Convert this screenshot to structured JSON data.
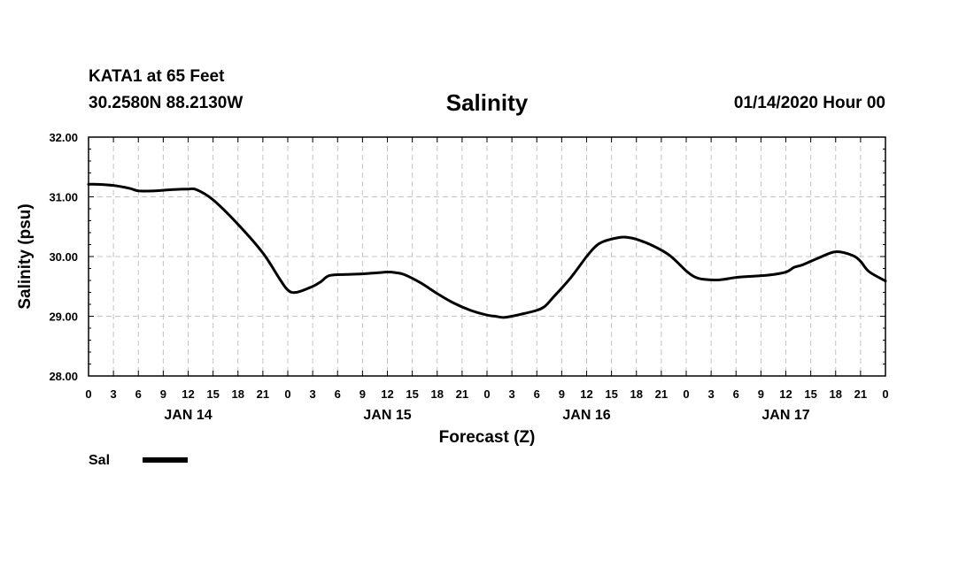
{
  "header": {
    "station": "KATA1 at 65 Feet",
    "coords": "30.2580N 88.2130W",
    "title": "Salinity",
    "run": "01/14/2020 Hour 00"
  },
  "chart_data": {
    "type": "line",
    "title": "Salinity",
    "xlabel": "Forecast (Z)",
    "ylabel": "Salinity (psu)",
    "xlim": [
      0,
      96
    ],
    "ylim": [
      28.0,
      32.0
    ],
    "grid": true,
    "y_ticks": [
      "28.00",
      "29.00",
      "30.00",
      "31.00",
      "32.00"
    ],
    "x_tick_labels": [
      "0",
      "3",
      "6",
      "9",
      "12",
      "15",
      "18",
      "21",
      "0",
      "3",
      "6",
      "9",
      "12",
      "15",
      "18",
      "21",
      "0",
      "3",
      "6",
      "9",
      "12",
      "15",
      "18",
      "21",
      "0",
      "3",
      "6",
      "9",
      "12",
      "15",
      "18",
      "21",
      "0"
    ],
    "day_labels": [
      {
        "label": "JAN 14",
        "hour": 12
      },
      {
        "label": "JAN 15",
        "hour": 36
      },
      {
        "label": "JAN 16",
        "hour": 60
      },
      {
        "label": "JAN 17",
        "hour": 84
      }
    ],
    "legend": [
      {
        "name": "Sal",
        "color": "#000000"
      }
    ],
    "series": [
      {
        "name": "Sal",
        "x": [
          0,
          1,
          3,
          5,
          6,
          8,
          10,
          12,
          13,
          15,
          18,
          21,
          23,
          24,
          25,
          27,
          28,
          29,
          31,
          33,
          34,
          35,
          36,
          37,
          38,
          40,
          42,
          44,
          46,
          48,
          49,
          50,
          51,
          52,
          54,
          55,
          56,
          58,
          60,
          61,
          62,
          64,
          65,
          66,
          68,
          70,
          72,
          73,
          74,
          76,
          78,
          80,
          82,
          84,
          85,
          86,
          88,
          90,
          92,
          93,
          94,
          96
        ],
        "y": [
          31.21,
          31.21,
          31.19,
          31.14,
          31.1,
          31.1,
          31.12,
          31.13,
          31.12,
          30.95,
          30.54,
          30.06,
          29.63,
          29.44,
          29.4,
          29.5,
          29.58,
          29.68,
          29.7,
          29.71,
          29.72,
          29.73,
          29.74,
          29.73,
          29.7,
          29.56,
          29.38,
          29.22,
          29.1,
          29.02,
          29.0,
          28.98,
          29.0,
          29.03,
          29.1,
          29.17,
          29.32,
          29.63,
          30.0,
          30.16,
          30.25,
          30.32,
          30.32,
          30.29,
          30.18,
          30.02,
          29.76,
          29.66,
          29.62,
          29.61,
          29.65,
          29.67,
          29.69,
          29.74,
          29.82,
          29.86,
          29.98,
          30.08,
          30.02,
          29.92,
          29.75,
          29.59
        ]
      }
    ]
  }
}
